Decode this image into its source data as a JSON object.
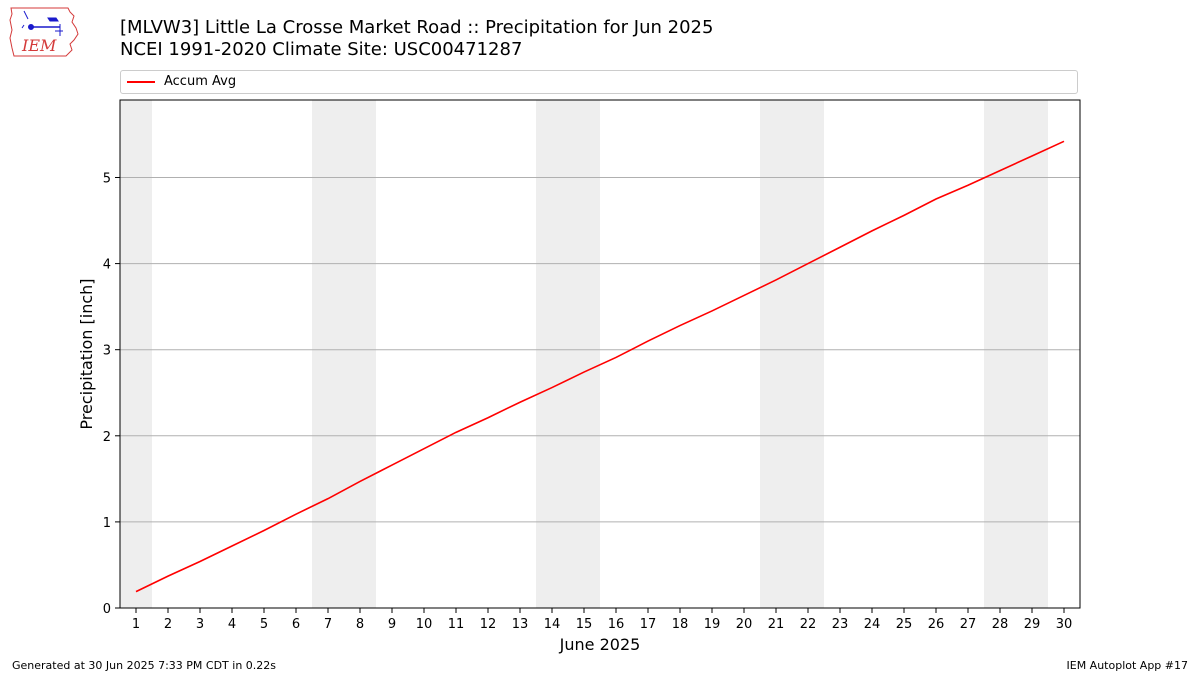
{
  "header": {
    "title_line1": "[MLVW3] Little La Crosse Market Road :: Precipitation for Jun 2025",
    "title_line2": "NCEI 1991-2020 Climate Site: USC00471287",
    "logo_text": "IEM"
  },
  "footer": {
    "generated": "Generated at 30 Jun 2025 7:33 PM CDT in 0.22s",
    "app": "IEM Autoplot App #17"
  },
  "colors": {
    "series": "#ff0000",
    "weekend_band": "#eeeeee",
    "grid": "#b0b0b0",
    "logo_outline": "#d43a3a",
    "logo_symbols": "#1a1acc"
  },
  "chart_data": {
    "type": "line",
    "xlabel": "June 2025",
    "ylabel": "Precipitation [inch]",
    "xlim": [
      0.5,
      30.5
    ],
    "ylim": [
      0,
      5.9
    ],
    "grid": "horizontal",
    "legend_position": "top",
    "shaded_days": [
      1,
      7,
      8,
      14,
      15,
      21,
      22,
      28,
      29
    ],
    "x_ticks": [
      1,
      2,
      3,
      4,
      5,
      6,
      7,
      8,
      9,
      10,
      11,
      12,
      13,
      14,
      15,
      16,
      17,
      18,
      19,
      20,
      21,
      22,
      23,
      24,
      25,
      26,
      27,
      28,
      29,
      30
    ],
    "y_ticks": [
      0,
      1,
      2,
      3,
      4,
      5
    ],
    "series": [
      {
        "name": "Accum Avg",
        "color": "#ff0000",
        "x": [
          1,
          2,
          3,
          4,
          5,
          6,
          7,
          8,
          9,
          10,
          11,
          12,
          13,
          14,
          15,
          16,
          17,
          18,
          19,
          20,
          21,
          22,
          23,
          24,
          25,
          26,
          27,
          28,
          29,
          30
        ],
        "values": [
          0.19,
          0.37,
          0.54,
          0.72,
          0.9,
          1.09,
          1.27,
          1.47,
          1.66,
          1.85,
          2.04,
          2.21,
          2.39,
          2.56,
          2.74,
          2.91,
          3.1,
          3.28,
          3.45,
          3.63,
          3.81,
          4.0,
          4.19,
          4.38,
          4.56,
          4.75,
          4.91,
          5.08,
          5.25,
          5.42
        ]
      }
    ]
  }
}
